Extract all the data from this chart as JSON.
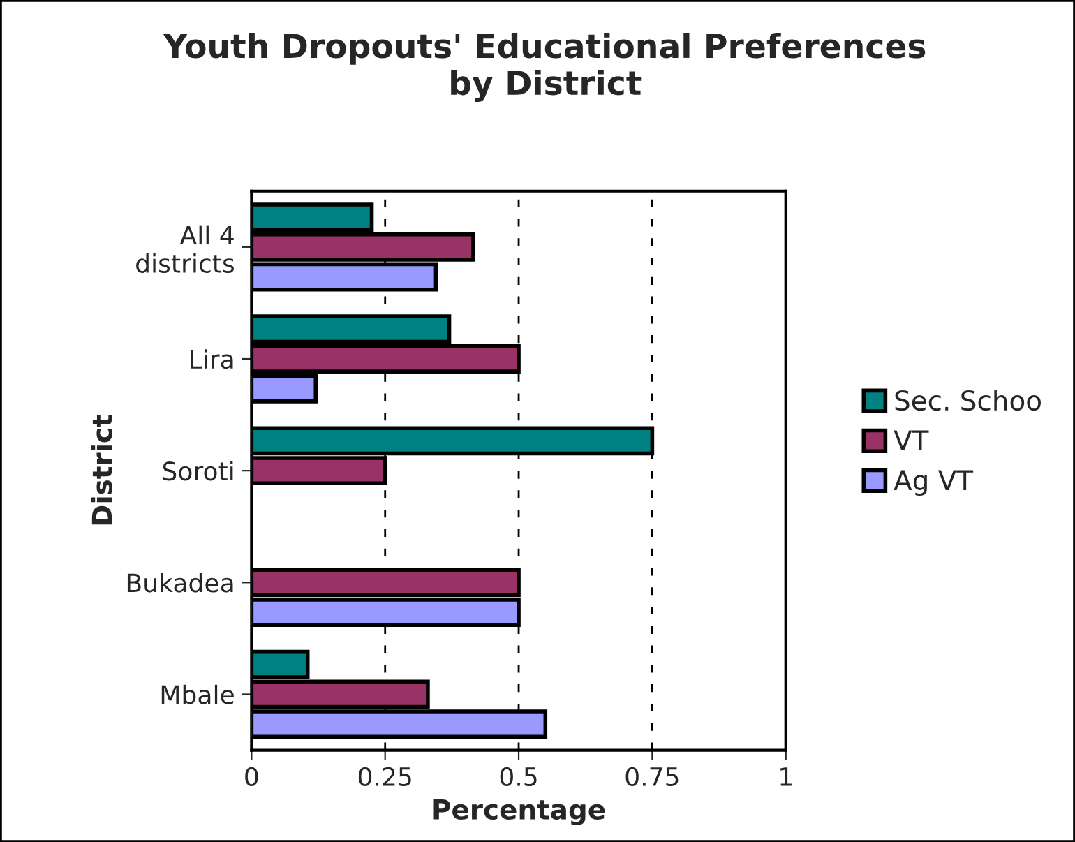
{
  "chart_data": {
    "type": "bar",
    "orientation": "horizontal",
    "title": "Youth Dropouts' Educational Preferences\nby District",
    "xlabel": "Percentage",
    "ylabel": "District",
    "categories": [
      "All 4\ndistricts",
      "Lira",
      "Soroti",
      "Bukadea",
      "Mbale"
    ],
    "series": [
      {
        "name": "Sec. Schoo",
        "color": "#008080",
        "values": [
          0.225,
          0.37,
          0.75,
          null,
          0.105
        ]
      },
      {
        "name": "VT",
        "color": "#993366",
        "values": [
          0.415,
          0.5,
          0.25,
          0.5,
          0.33
        ]
      },
      {
        "name": "Ag VT",
        "color": "#9999ff",
        "values": [
          0.345,
          0.12,
          null,
          0.5,
          0.55
        ]
      }
    ],
    "xlim": [
      0,
      1
    ],
    "xticks": [
      0,
      0.25,
      0.5,
      0.75,
      1
    ],
    "grid": "x",
    "legend": "right"
  }
}
